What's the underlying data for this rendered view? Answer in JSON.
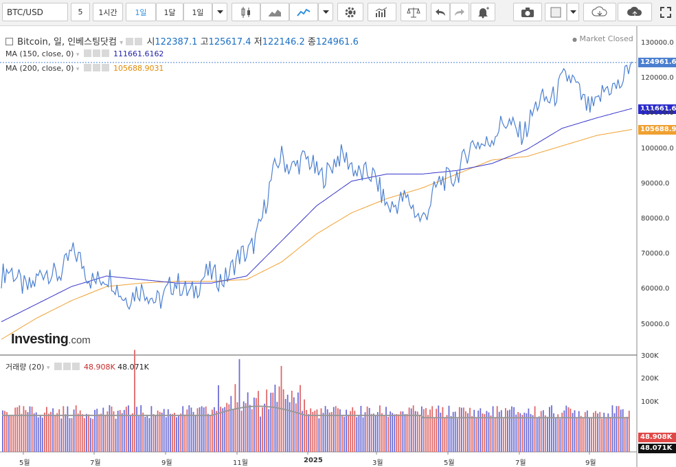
{
  "toolbar": {
    "symbol": "BTC/USD",
    "interval_5": "5",
    "interval_1h": "1시간",
    "interval_1d": "1일",
    "interval_1mo": "1달",
    "interval_custom": "1일"
  },
  "legend": {
    "title": "Bitcoin, 일, 인베스팅닷컴",
    "open_label": "시",
    "open": "122387.1",
    "high_label": "고",
    "high": "125617.4",
    "low_label": "저",
    "low": "122146.2",
    "close_label": "종",
    "close": "124961.6",
    "market_status": "Market Closed",
    "ma150_label": "MA (150, close, 0)",
    "ma150_value": "111661.6162",
    "ma200_label": "MA (200, close, 0)",
    "ma200_value": "105688.9031",
    "volume_label": "거래량 (20)",
    "volume_value1": "48.908K",
    "volume_value2": "48.071K",
    "logo_main": "Investing",
    "logo_suffix": ".com"
  },
  "price_axis": [
    "130000.0",
    "120000.0",
    "110000.0",
    "100000.0",
    "90000.0",
    "80000.0",
    "70000.0",
    "60000.0",
    "50000.0"
  ],
  "volume_axis": [
    "300K",
    "200K",
    "100K"
  ],
  "time_axis": [
    "5월",
    "7월",
    "9월",
    "11월",
    "2025",
    "3월",
    "5월",
    "7월",
    "9월"
  ],
  "tags": {
    "price": "124961.6",
    "ma150": "111661.6",
    "ma200": "105688.9",
    "vol1": "48.908K",
    "vol2": "48.071K"
  },
  "colors": {
    "price_line": "#4a7fd0",
    "ma150": "#3333cc",
    "ma200": "#f0a030",
    "vol_up": "#6b6bd6",
    "vol_down": "#e06666"
  },
  "chart_data": {
    "type": "line",
    "x": [
      "2024-04",
      "2024-05",
      "2024-06",
      "2024-07",
      "2024-08",
      "2024-09",
      "2024-10",
      "2024-11",
      "2024-12",
      "2025-01",
      "2025-02",
      "2025-03",
      "2025-04",
      "2025-05",
      "2025-06",
      "2025-07",
      "2025-08",
      "2025-09",
      "2025-10"
    ],
    "series": [
      {
        "name": "Bitcoin",
        "values": [
          64000,
          62000,
          69000,
          62000,
          58000,
          60000,
          63000,
          69000,
          98000,
          94000,
          97000,
          86000,
          82000,
          95000,
          105000,
          107000,
          120000,
          112000,
          124961.6
        ]
      },
      {
        "name": "MA (150, close, 0)",
        "values": [
          51000,
          56000,
          61000,
          64000,
          63000,
          62000,
          62000,
          64000,
          74000,
          84000,
          91000,
          93000,
          93000,
          94000,
          96000,
          100000,
          106000,
          109000,
          111661.6
        ]
      },
      {
        "name": "MA (200, close, 0)",
        "values": [
          46000,
          52000,
          57000,
          61000,
          62000,
          62500,
          62500,
          63000,
          68000,
          76000,
          82000,
          86000,
          89000,
          93000,
          97000,
          98000,
          101000,
          104000,
          105688.9
        ]
      }
    ],
    "ylim": [
      45000,
      132000
    ]
  }
}
